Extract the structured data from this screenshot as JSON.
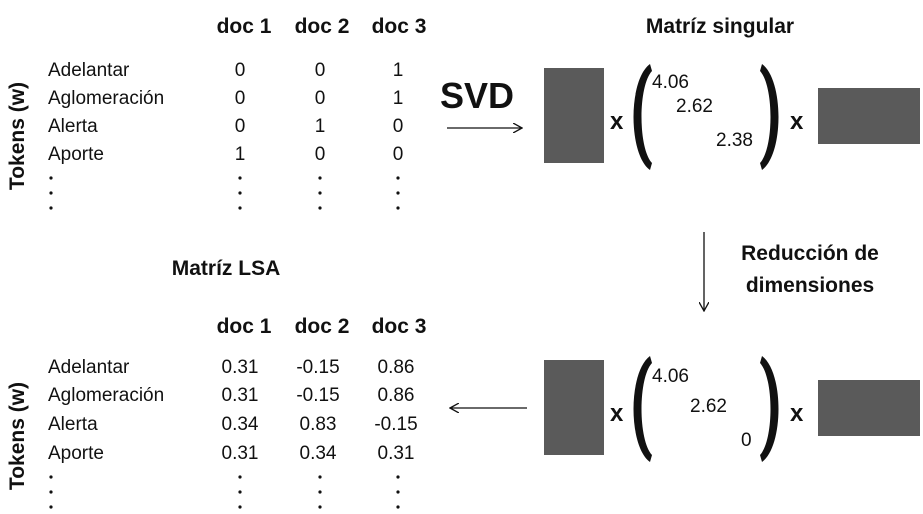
{
  "top_matrix": {
    "axis_label": "Tokens (w)",
    "columns": [
      "doc 1",
      "doc 2",
      "doc 3"
    ],
    "rows": [
      {
        "token": "Adelantar",
        "values": [
          "0",
          "0",
          "1"
        ]
      },
      {
        "token": "Aglomeración",
        "values": [
          "0",
          "0",
          "1"
        ]
      },
      {
        "token": "Alerta",
        "values": [
          "0",
          "1",
          "0"
        ]
      },
      {
        "token": "Aporte",
        "values": [
          "1",
          "0",
          "0"
        ]
      }
    ]
  },
  "svd": {
    "label": "SVD",
    "title": "Matríz singular",
    "times": "x",
    "singular_values": [
      "4.06",
      "2.62",
      "2.38"
    ],
    "box_color": "#5a5a5a"
  },
  "reduction": {
    "line1": "Reducción de",
    "line2": "dimensiones",
    "times": "x",
    "singular_values": [
      "4.06",
      "2.62",
      "0"
    ]
  },
  "bottom_matrix": {
    "title": "Matríz LSA",
    "axis_label": "Tokens (w)",
    "columns": [
      "doc 1",
      "doc 2",
      "doc 3"
    ],
    "rows": [
      {
        "token": "Adelantar",
        "values": [
          "0.31",
          "-0.15",
          "0.86"
        ]
      },
      {
        "token": "Aglomeración",
        "values": [
          "0.31",
          "-0.15",
          "0.86"
        ]
      },
      {
        "token": "Alerta",
        "values": [
          "0.34",
          "0.83",
          "-0.15"
        ]
      },
      {
        "token": "Aporte",
        "values": [
          "0.31",
          "0.34",
          "0.31"
        ]
      }
    ]
  }
}
